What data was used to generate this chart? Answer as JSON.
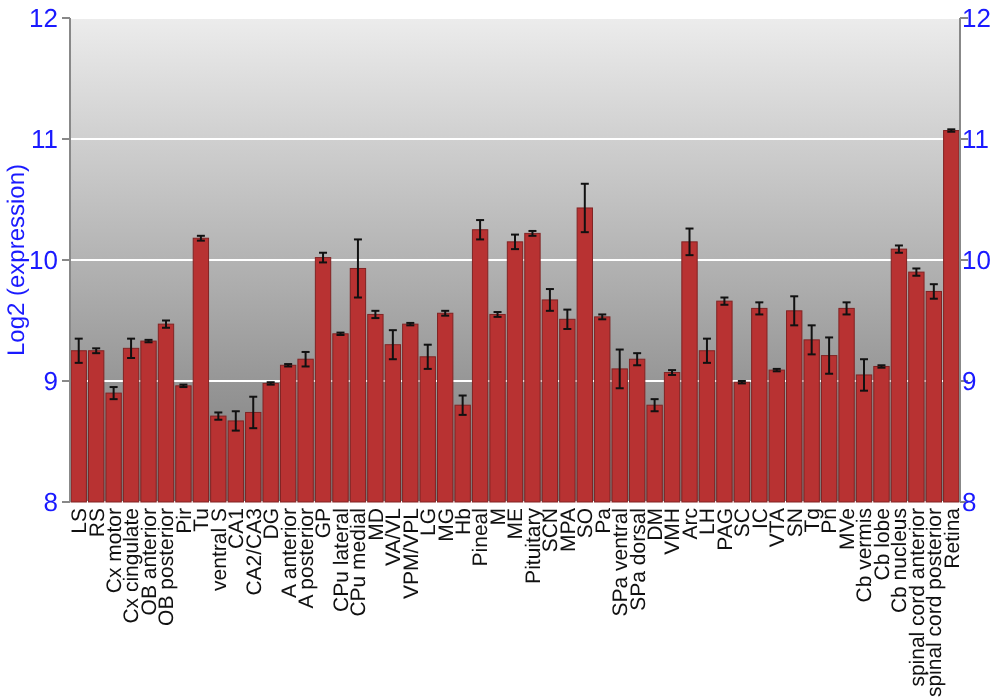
{
  "chart_data": {
    "type": "bar",
    "ylabel": "Log2 (expression)",
    "categories": [
      "LS",
      "RS",
      "Cx motor",
      "Cx cingulate",
      "OB anterior",
      "OB posterior",
      "Pir",
      "Tu",
      "ventral S",
      "CA1",
      "CA2/CA3",
      "DG",
      "A anterior",
      "A posterior",
      "GP",
      "CPu lateral",
      "CPu medial",
      "MD",
      "VA/VL",
      "VPM/VPL",
      "LG",
      "MG",
      "Hb",
      "Pineal",
      "M",
      "ME",
      "Pituitary",
      "SCN",
      "MPA",
      "SO",
      "Pa",
      "SPa ventral",
      "SPa dorsal",
      "DM",
      "VMH",
      "Arc",
      "LH",
      "PAG",
      "SC",
      "IC",
      "VTA",
      "SN",
      "Tg",
      "Pn",
      "MVe",
      "Cb vermis",
      "Cb lobe",
      "Cb nucleus",
      "spinal cord anterior",
      "spinal cord posterior",
      "Retina"
    ],
    "values": [
      9.25,
      9.25,
      8.9,
      9.27,
      9.33,
      9.47,
      8.96,
      10.18,
      8.71,
      8.67,
      8.74,
      8.98,
      9.13,
      9.18,
      10.02,
      9.39,
      9.93,
      9.55,
      9.3,
      9.47,
      9.2,
      9.56,
      8.8,
      10.25,
      9.55,
      10.15,
      10.22,
      9.67,
      9.51,
      10.43,
      9.53,
      9.1,
      9.18,
      8.8,
      9.07,
      10.15,
      9.25,
      9.66,
      8.99,
      9.6,
      9.09,
      9.58,
      9.34,
      9.21,
      9.6,
      9.05,
      9.12,
      10.09,
      9.9,
      9.74,
      11.07
    ],
    "errors": [
      0.1,
      0.02,
      0.05,
      0.08,
      0.01,
      0.03,
      0.01,
      0.02,
      0.03,
      0.08,
      0.13,
      0.01,
      0.01,
      0.06,
      0.04,
      0.01,
      0.24,
      0.03,
      0.12,
      0.01,
      0.1,
      0.02,
      0.08,
      0.08,
      0.02,
      0.06,
      0.02,
      0.09,
      0.08,
      0.2,
      0.02,
      0.16,
      0.05,
      0.05,
      0.02,
      0.11,
      0.1,
      0.03,
      0.01,
      0.05,
      0.01,
      0.12,
      0.12,
      0.15,
      0.05,
      0.13,
      0.01,
      0.03,
      0.03,
      0.06,
      0.01
    ],
    "color": "#b83232",
    "ylim": [
      8,
      12
    ],
    "yticks": [
      8,
      9,
      10,
      11,
      12
    ],
    "y2lim": [
      8,
      12
    ],
    "y2ticks": [
      8,
      9,
      10,
      11,
      12
    ],
    "grid": "y"
  }
}
